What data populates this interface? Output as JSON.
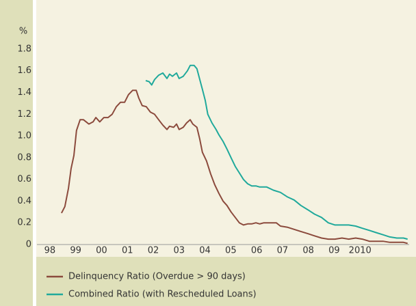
{
  "chart_data": {
    "type": "line",
    "ylabel": "%",
    "xlim": [
      1998,
      2012.4
    ],
    "xticks": [
      {
        "value": 1998.5,
        "label": "98"
      },
      {
        "value": 1999.5,
        "label": "99"
      },
      {
        "value": 2000.5,
        "label": "00"
      },
      {
        "value": 2001.5,
        "label": "01"
      },
      {
        "value": 2002.5,
        "label": "02"
      },
      {
        "value": 2003.5,
        "label": "03"
      },
      {
        "value": 2004.5,
        "label": "04"
      },
      {
        "value": 2005.5,
        "label": "05"
      },
      {
        "value": 2006.5,
        "label": "06"
      },
      {
        "value": 2007.5,
        "label": "07"
      },
      {
        "value": 2008.5,
        "label": "08"
      },
      {
        "value": 2009.5,
        "label": "09"
      },
      {
        "value": 2010.5,
        "label": "2010"
      }
    ],
    "ylim": [
      0,
      2.2
    ],
    "yticks": [
      0,
      0.2,
      0.4,
      0.6,
      0.8,
      {
        "value": 1,
        "label": "1.0"
      },
      1.2,
      1.4,
      1.6,
      1.8
    ],
    "series": [
      {
        "name": "Delinquency Ratio (Overdue > 90 days)",
        "color": "#8b4a3c",
        "x": [
          1998.95,
          1999.08,
          1999.22,
          1999.32,
          1999.43,
          1999.53,
          1999.67,
          1999.8,
          2000.01,
          2000.17,
          2000.28,
          2000.43,
          2000.59,
          2000.75,
          2000.91,
          2001.07,
          2001.23,
          2001.39,
          2001.54,
          2001.7,
          2001.84,
          2001.94,
          2002.07,
          2002.23,
          2002.39,
          2002.55,
          2002.71,
          2002.87,
          2003.03,
          2003.13,
          2003.29,
          2003.4,
          2003.5,
          2003.66,
          2003.79,
          2003.93,
          2004.03,
          2004.19,
          2004.3,
          2004.4,
          2004.56,
          2004.72,
          2004.88,
          2005.04,
          2005.2,
          2005.35,
          2005.51,
          2005.67,
          2005.83,
          2005.99,
          2006.15,
          2006.31,
          2006.47,
          2006.62,
          2006.78,
          2007.02,
          2007.26,
          2007.42,
          2007.68,
          2007.95,
          2008.21,
          2008.48,
          2008.74,
          2009.01,
          2009.27,
          2009.53,
          2009.8,
          2010.06,
          2010.33,
          2010.59,
          2010.86,
          2011.12,
          2011.39,
          2011.65,
          2011.92,
          2012.18,
          2012.34
        ],
        "values": [
          0.29,
          0.35,
          0.52,
          0.7,
          0.82,
          1.05,
          1.15,
          1.15,
          1.11,
          1.13,
          1.17,
          1.13,
          1.17,
          1.17,
          1.2,
          1.27,
          1.31,
          1.31,
          1.38,
          1.42,
          1.42,
          1.35,
          1.28,
          1.27,
          1.22,
          1.2,
          1.15,
          1.1,
          1.06,
          1.09,
          1.08,
          1.11,
          1.06,
          1.08,
          1.12,
          1.15,
          1.11,
          1.08,
          0.97,
          0.85,
          0.77,
          0.65,
          0.55,
          0.47,
          0.4,
          0.36,
          0.3,
          0.25,
          0.2,
          0.18,
          0.19,
          0.19,
          0.2,
          0.19,
          0.2,
          0.2,
          0.2,
          0.17,
          0.16,
          0.14,
          0.12,
          0.1,
          0.08,
          0.06,
          0.05,
          0.05,
          0.06,
          0.05,
          0.06,
          0.05,
          0.03,
          0.03,
          0.03,
          0.02,
          0.02,
          0.02,
          0.01
        ]
      },
      {
        "name": "Combined Ratio (with Rescheduled Loans)",
        "color": "#1fa99b",
        "x": [
          2002.21,
          2002.34,
          2002.44,
          2002.55,
          2002.71,
          2002.87,
          2003.03,
          2003.13,
          2003.24,
          2003.4,
          2003.5,
          2003.66,
          2003.82,
          2003.93,
          2004.08,
          2004.19,
          2004.3,
          2004.4,
          2004.51,
          2004.61,
          2004.77,
          2004.93,
          2005.04,
          2005.2,
          2005.35,
          2005.51,
          2005.67,
          2005.83,
          2005.99,
          2006.15,
          2006.31,
          2006.47,
          2006.62,
          2006.89,
          2007.15,
          2007.42,
          2007.68,
          2007.95,
          2008.21,
          2008.48,
          2008.74,
          2009.01,
          2009.27,
          2009.53,
          2009.8,
          2010.06,
          2010.33,
          2010.59,
          2010.86,
          2011.12,
          2011.39,
          2011.65,
          2011.92,
          2012.18,
          2012.34
        ],
        "values": [
          1.51,
          1.5,
          1.47,
          1.52,
          1.56,
          1.58,
          1.53,
          1.57,
          1.55,
          1.58,
          1.53,
          1.55,
          1.6,
          1.65,
          1.65,
          1.62,
          1.52,
          1.43,
          1.33,
          1.2,
          1.12,
          1.06,
          1.01,
          0.95,
          0.88,
          0.8,
          0.72,
          0.66,
          0.6,
          0.56,
          0.54,
          0.54,
          0.53,
          0.53,
          0.5,
          0.48,
          0.44,
          0.41,
          0.36,
          0.32,
          0.28,
          0.25,
          0.2,
          0.18,
          0.18,
          0.18,
          0.17,
          0.15,
          0.13,
          0.11,
          0.09,
          0.07,
          0.06,
          0.06,
          0.05
        ]
      }
    ]
  }
}
